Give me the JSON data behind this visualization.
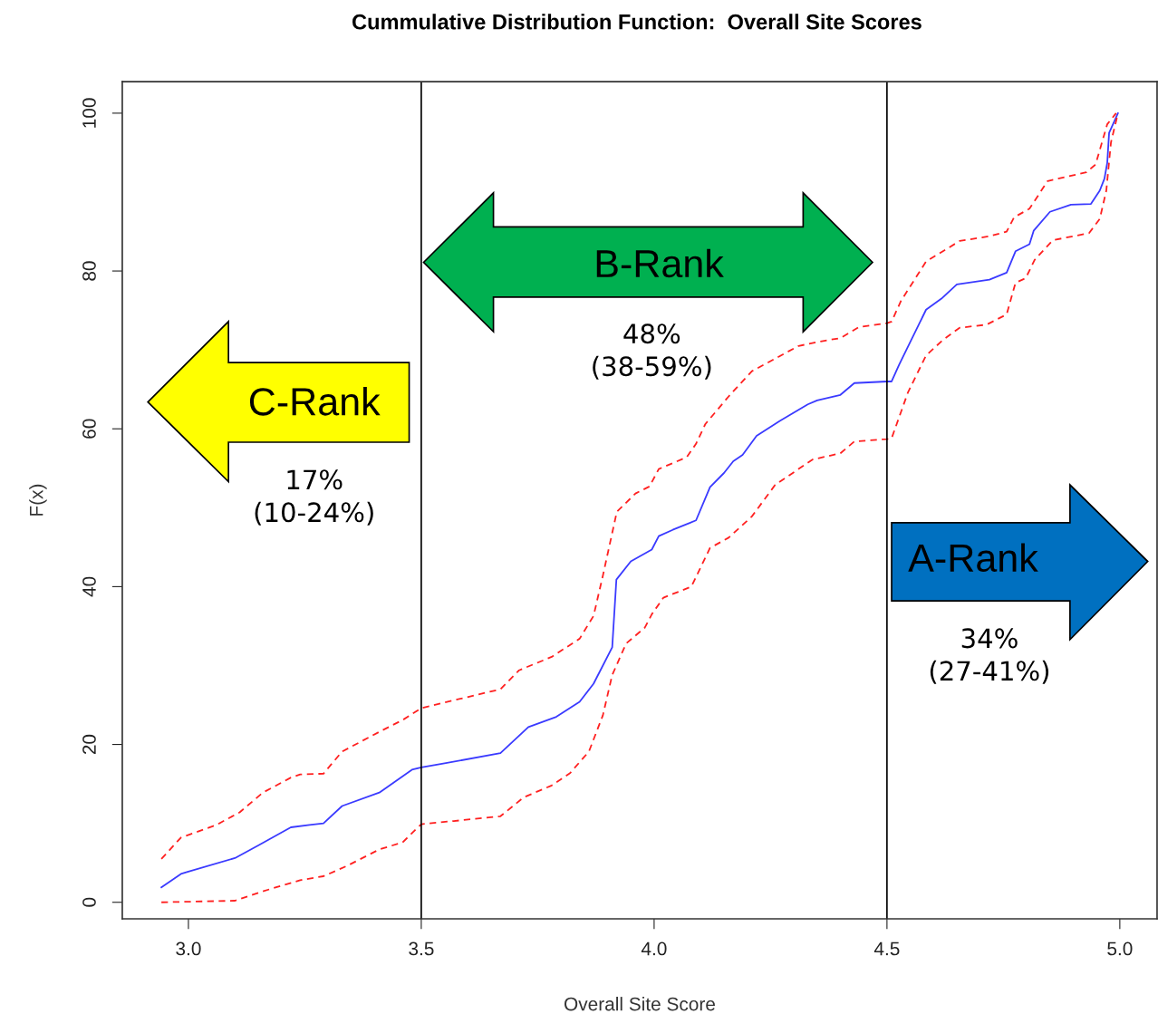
{
  "chart_data": {
    "type": "line",
    "title": "Cummulative Distribution Function:  Overall Site Scores",
    "xlabel": "Overall Site Score",
    "ylabel": "F(x)",
    "xlim": [
      2.858,
      5.08
    ],
    "ylim": [
      -2.1,
      104
    ],
    "xticks": [
      {
        "value": 3.0,
        "label": "3.0"
      },
      {
        "value": 3.5,
        "label": "3.5"
      },
      {
        "value": 4.0,
        "label": "4.0"
      },
      {
        "value": 4.5,
        "label": "4.5"
      },
      {
        "value": 5.0,
        "label": "5.0"
      }
    ],
    "yticks": [
      0,
      20,
      40,
      60,
      80,
      100
    ],
    "grid": false,
    "legend": false,
    "series": [
      {
        "color": "#3a3aff",
        "line_style": "solid",
        "x": [
          2.942,
          2.984,
          3.0,
          3.1,
          3.15,
          3.22,
          3.26,
          3.29,
          3.33,
          3.41,
          3.48,
          3.5,
          3.55,
          3.67,
          3.73,
          3.79,
          3.84,
          3.87,
          3.91,
          3.919,
          3.95,
          3.995,
          4.01,
          4.04,
          4.09,
          4.12,
          4.15,
          4.17,
          4.19,
          4.22,
          4.27,
          4.33,
          4.35,
          4.4,
          4.43,
          4.5,
          4.51,
          4.526,
          4.584,
          4.617,
          4.65,
          4.72,
          4.757,
          4.776,
          4.806,
          4.815,
          4.85,
          4.895,
          4.938,
          4.957,
          4.967,
          4.973,
          4.977,
          4.996
        ],
        "values": [
          1.9,
          3.6,
          3.9,
          5.6,
          7.2,
          9.5,
          9.8,
          10.0,
          12.2,
          13.9,
          16.8,
          17.1,
          17.6,
          18.9,
          22.2,
          23.5,
          25.4,
          27.7,
          32.3,
          40.9,
          43.2,
          44.7,
          46.4,
          47.2,
          48.4,
          52.6,
          54.4,
          55.9,
          56.7,
          59.1,
          61.0,
          63.1,
          63.6,
          64.3,
          65.8,
          66.0,
          66.0,
          68.1,
          75.1,
          76.5,
          78.3,
          78.9,
          79.8,
          82.5,
          83.4,
          85.1,
          87.5,
          88.4,
          88.5,
          90.2,
          91.7,
          93.7,
          97.5,
          100
        ]
      },
      {
        "color": "#ff2020",
        "line_style": "dashed",
        "x": [
          2.942,
          2.984,
          3.06,
          3.11,
          3.16,
          3.22,
          3.24,
          3.29,
          3.33,
          3.41,
          3.46,
          3.5,
          3.57,
          3.67,
          3.71,
          3.78,
          3.84,
          3.87,
          3.89,
          3.92,
          3.96,
          3.99,
          4.01,
          4.07,
          4.09,
          4.11,
          4.16,
          4.21,
          4.31,
          4.36,
          4.4,
          4.44,
          4.5,
          4.51,
          4.53,
          4.584,
          4.656,
          4.72,
          4.757,
          4.773,
          4.806,
          4.845,
          4.928,
          4.948,
          4.973,
          4.992
        ],
        "values": [
          5.5,
          8.2,
          9.8,
          11.4,
          13.9,
          15.8,
          16.2,
          16.3,
          19.1,
          21.6,
          23.1,
          24.6,
          25.6,
          27.0,
          29.4,
          31.1,
          33.4,
          36.3,
          41.4,
          49.5,
          51.8,
          52.7,
          54.9,
          56.4,
          58.1,
          60.6,
          64.1,
          67.3,
          70.5,
          71.1,
          71.5,
          72.9,
          73.4,
          73.6,
          76.2,
          81.2,
          83.8,
          84.4,
          85.0,
          86.8,
          87.9,
          91.4,
          92.5,
          93.5,
          98.6,
          100
        ]
      },
      {
        "color": "#ff2020",
        "line_style": "dashed",
        "x": [
          2.942,
          3.1,
          3.16,
          3.24,
          3.29,
          3.34,
          3.41,
          3.46,
          3.5,
          3.57,
          3.67,
          3.72,
          3.78,
          3.82,
          3.86,
          3.89,
          3.91,
          3.94,
          3.98,
          3.995,
          4.02,
          4.08,
          4.12,
          4.16,
          4.21,
          4.26,
          4.34,
          4.4,
          4.43,
          4.5,
          4.51,
          4.545,
          4.584,
          4.621,
          4.656,
          4.714,
          4.757,
          4.776,
          4.798,
          4.817,
          4.856,
          4.934,
          4.957,
          4.971,
          4.981,
          4.996
        ],
        "values": [
          0,
          0.2,
          1.4,
          2.8,
          3.3,
          4.6,
          6.7,
          7.6,
          9.9,
          10.3,
          10.9,
          13.3,
          14.8,
          16.4,
          19.1,
          23.7,
          28.8,
          32.8,
          34.8,
          36.5,
          38.6,
          40.0,
          44.9,
          46.2,
          48.9,
          52.9,
          56.1,
          56.9,
          58.4,
          58.7,
          58.8,
          64.6,
          69.3,
          71.3,
          72.8,
          73.2,
          74.5,
          78.5,
          79.1,
          81.4,
          83.9,
          84.8,
          86.6,
          90.2,
          96.3,
          100
        ]
      }
    ],
    "ref_lines": [
      {
        "axis": "x",
        "value": 3.5,
        "color": "#000000"
      },
      {
        "axis": "x",
        "value": 4.5,
        "color": "#000000"
      }
    ],
    "annotations": [
      "C-Rank",
      "17%\n(10-24%)",
      "B-Rank",
      "48%\n(38-59%)",
      "A-Rank",
      "34%\n(27-41%)"
    ]
  }
}
